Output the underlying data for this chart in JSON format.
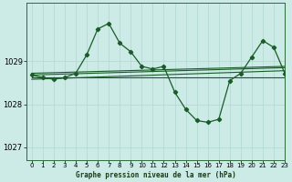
{
  "title": "Graphe pression niveau de la mer (hPa)",
  "bg_color": "#cceae6",
  "grid_color": "#b0d8d0",
  "line_color": "#1a5c28",
  "xlim": [
    -0.5,
    23
  ],
  "ylim": [
    1026.7,
    1030.35
  ],
  "yticks": [
    1027,
    1028,
    1029
  ],
  "xticks": [
    0,
    1,
    2,
    3,
    4,
    5,
    6,
    7,
    8,
    9,
    10,
    11,
    12,
    13,
    14,
    15,
    16,
    17,
    18,
    19,
    20,
    21,
    22,
    23
  ],
  "main_x": [
    0,
    1,
    2,
    3,
    4,
    5,
    6,
    7,
    8,
    9,
    10,
    11,
    12,
    13,
    14,
    15,
    16,
    17,
    18,
    19,
    20,
    21,
    22,
    23
  ],
  "main_y": [
    1028.68,
    1028.62,
    1028.58,
    1028.62,
    1028.72,
    1029.15,
    1029.75,
    1029.88,
    1029.42,
    1029.22,
    1028.88,
    1028.82,
    1028.88,
    1028.28,
    1027.88,
    1027.62,
    1027.58,
    1027.65,
    1028.55,
    1028.72,
    1029.1,
    1029.48,
    1029.32,
    1028.72
  ],
  "flat_line": [
    1028.63,
    1028.63
  ],
  "rise_line1_y": [
    1028.68,
    1028.85
  ],
  "rise_line2_y": [
    1028.72,
    1028.88
  ],
  "rise_line3_y": [
    1028.58,
    1028.78
  ]
}
